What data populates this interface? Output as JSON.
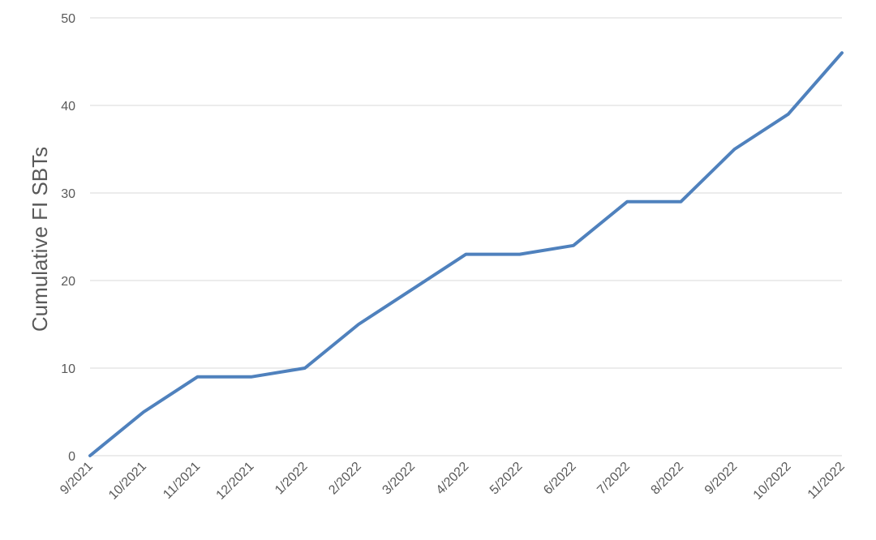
{
  "chart_data": {
    "type": "line",
    "y_label": "Cumulative FI SBTs",
    "categories": [
      "9/2021",
      "10/2021",
      "11/2021",
      "12/2021",
      "1/2022",
      "2/2022",
      "3/2022",
      "4/2022",
      "5/2022",
      "6/2022",
      "7/2022",
      "8/2022",
      "9/2022",
      "10/2022",
      "11/2022"
    ],
    "series": [
      {
        "name": "Cumulative FI SBTs",
        "color": "#4f81bd",
        "values": [
          0,
          5,
          9,
          9,
          10,
          15,
          19,
          23,
          23,
          24,
          29,
          29,
          35,
          39,
          46
        ]
      }
    ],
    "ylim": [
      0,
      50
    ],
    "yticks": [
      0,
      10,
      20,
      30,
      40,
      50
    ],
    "grid": true
  }
}
